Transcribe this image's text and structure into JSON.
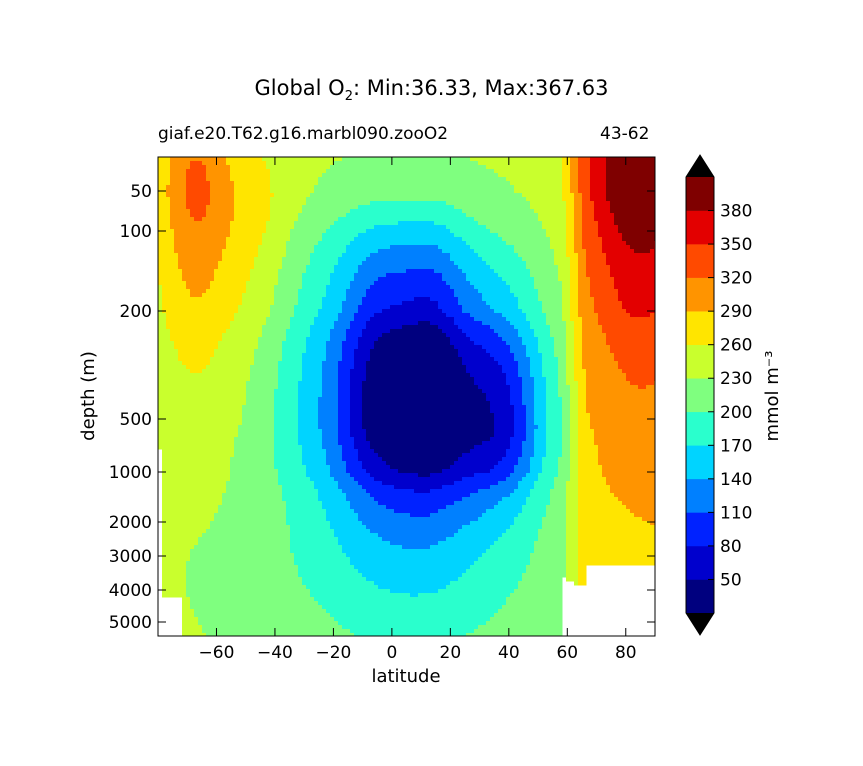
{
  "chart_data": {
    "type": "heatmap",
    "title": {
      "prefix": "Global O",
      "subscript": "2",
      "suffix": ": Min:36.33, Max:367.63"
    },
    "left_subtitle": "giaf.e20.T62.g16.marbl090.zooO2",
    "right_subtitle": "43-62",
    "xlabel": "latitude",
    "ylabel": "depth (m)",
    "xlim": [
      -80,
      90
    ],
    "x_ticks": [
      -60,
      -40,
      -20,
      0,
      20,
      40,
      60,
      80
    ],
    "x_tick_labels": [
      "−60",
      "−40",
      "−20",
      "0",
      "20",
      "40",
      "60",
      "80"
    ],
    "y_ticks": [
      50,
      100,
      200,
      500,
      1000,
      2000,
      3000,
      4000,
      5000
    ],
    "y_tick_labels": [
      "50",
      "100",
      "200",
      "500",
      "1000",
      "2000",
      "3000",
      "4000",
      "5000"
    ],
    "y_inverted": true,
    "colorbar": {
      "label": "mmol m⁻³",
      "levels": [
        50,
        80,
        110,
        140,
        170,
        200,
        230,
        260,
        290,
        320,
        350,
        380
      ],
      "level_labels": [
        "50",
        "80",
        "110",
        "140",
        "170",
        "200",
        "230",
        "260",
        "290",
        "320",
        "350",
        "380"
      ],
      "colors": [
        "#00007f",
        "#0000cd",
        "#0022ff",
        "#0080ff",
        "#00d4ff",
        "#2affcd",
        "#7fff7f",
        "#c9ff2d",
        "#ffe500",
        "#ff9400",
        "#ff4a00",
        "#e30000",
        "#7f0000"
      ],
      "under_color": "#000000",
      "over_color": "#000000",
      "extend": "both"
    },
    "data_range": {
      "min": 36.33,
      "max": 367.63
    }
  }
}
